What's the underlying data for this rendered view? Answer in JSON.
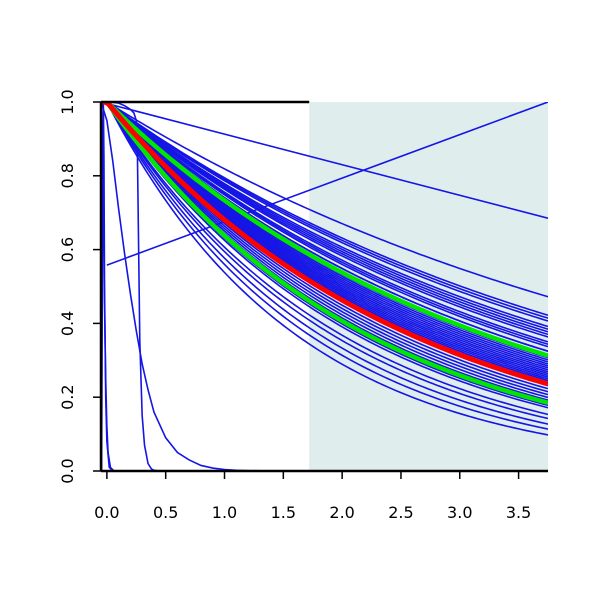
{
  "chart_data": {
    "type": "line",
    "title": "",
    "xlabel": "",
    "ylabel": "",
    "xlim": [
      -0.05,
      3.75
    ],
    "ylim": [
      0,
      1
    ],
    "xticks": [
      "0.0",
      "0.5",
      "1.0",
      "1.5",
      "2.0",
      "2.5",
      "3.0",
      "3.5"
    ],
    "yticks": [
      "0.0",
      "0.2",
      "0.4",
      "0.6",
      "0.8",
      "1.0"
    ],
    "shaded_region": {
      "x_from": 1.72,
      "x_to": 3.75,
      "color": "#e0eded"
    },
    "grid": false,
    "legend": "none",
    "colors": {
      "ensemble": "#1515e6",
      "highlight": "#ff0000",
      "band": "#00e600"
    },
    "ensemble_exponential_rates": [
      0.2,
      0.23,
      0.235,
      0.24,
      0.25,
      0.255,
      0.26,
      0.265,
      0.27,
      0.28,
      0.285,
      0.29,
      0.3,
      0.3,
      0.31,
      0.315,
      0.32,
      0.325,
      0.33,
      0.335,
      0.34,
      0.345,
      0.35,
      0.355,
      0.36,
      0.365,
      0.37,
      0.375,
      0.38,
      0.39,
      0.4,
      0.41,
      0.42,
      0.43,
      0.44,
      0.45,
      0.46,
      0.47,
      0.5,
      0.52,
      0.55,
      0.58,
      0.62
    ],
    "ensemble_lines": [
      {
        "x": [
          -0.05,
          3.75
        ],
        "y": [
          1.0,
          0.685
        ]
      },
      {
        "x": [
          0.0,
          3.75
        ],
        "y": [
          0.558,
          1.0
        ]
      }
    ],
    "ensemble_curves": [
      {
        "x": [
          -0.05,
          0.0,
          0.05,
          0.1,
          0.15,
          0.2,
          0.25,
          0.3,
          0.35,
          0.4,
          0.5,
          0.6,
          0.7,
          0.8,
          0.9,
          1.0,
          1.1,
          1.2,
          1.4,
          1.7,
          2.0,
          3.75
        ],
        "y": [
          1.0,
          0.95,
          0.84,
          0.71,
          0.59,
          0.48,
          0.38,
          0.29,
          0.22,
          0.16,
          0.09,
          0.05,
          0.03,
          0.015,
          0.008,
          0.004,
          0.002,
          0.001,
          0.0,
          0.0,
          0.0,
          0.0
        ]
      },
      {
        "x": [
          -0.05,
          0.0,
          0.05,
          0.1,
          0.15,
          0.2,
          0.23,
          0.25,
          0.26,
          0.27,
          0.28,
          0.3,
          0.32,
          0.35,
          0.38,
          0.4,
          0.45,
          0.5,
          3.75
        ],
        "y": [
          1.0,
          1.0,
          0.999,
          0.997,
          0.99,
          0.98,
          0.97,
          0.95,
          0.85,
          0.6,
          0.35,
          0.15,
          0.07,
          0.02,
          0.005,
          0.002,
          0.0,
          0.0,
          0.0
        ]
      },
      {
        "x": [
          -0.045,
          -0.04,
          -0.035,
          -0.03,
          -0.025,
          -0.02,
          -0.01,
          0.0,
          0.02,
          0.05,
          3.75
        ],
        "y": [
          0.0,
          0.4,
          0.85,
          1.0,
          0.85,
          0.5,
          0.2,
          0.08,
          0.01,
          0.0,
          0.0
        ]
      },
      {
        "x": [
          -0.05,
          -0.04,
          -0.03,
          -0.02,
          -0.01,
          0.0,
          0.01,
          0.03,
          0.06,
          3.75
        ],
        "y": [
          1.0,
          0.9,
          0.7,
          0.45,
          0.25,
          0.12,
          0.05,
          0.01,
          0.0,
          0.0
        ]
      }
    ],
    "highlight_rate": 0.385,
    "band_rates": [
      0.31,
      0.45
    ]
  }
}
